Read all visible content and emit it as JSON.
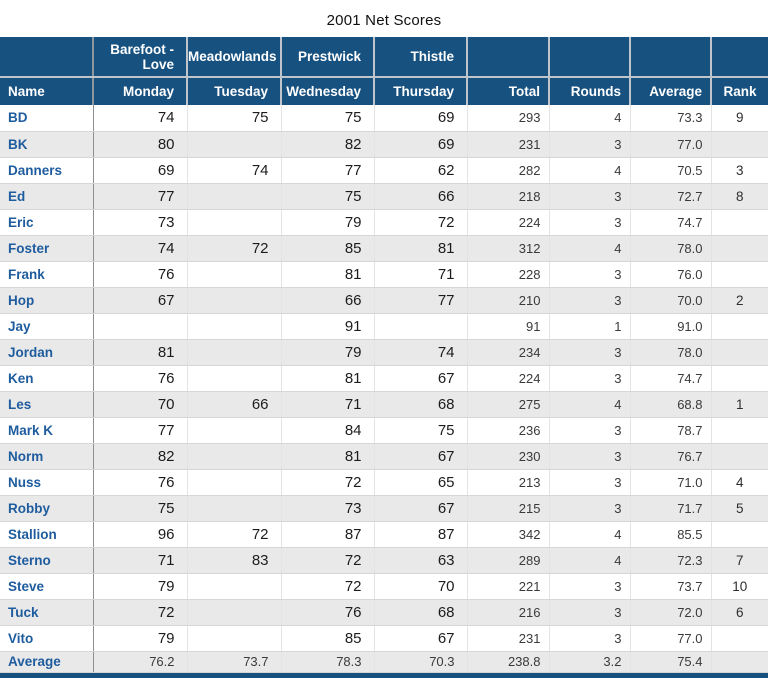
{
  "title": "2001 Net Scores",
  "colors": {
    "header_bg": "#175180",
    "name_text": "#1e5c9e",
    "alt_row_bg": "#e9e9e9"
  },
  "chart_data": {
    "type": "table",
    "title": "2001 Net Scores",
    "course_header": [
      "",
      "Barefoot - Love",
      "Meadowlands",
      "Prestwick",
      "Thistle",
      "",
      "",
      "",
      ""
    ],
    "columns": [
      "Name",
      "Monday",
      "Tuesday",
      "Wednesday",
      "Thursday",
      "Total",
      "Rounds",
      "Average",
      "Rank"
    ],
    "rows": [
      [
        "BD",
        "74",
        "75",
        "75",
        "69",
        "293",
        "4",
        "73.3",
        "9"
      ],
      [
        "BK",
        "80",
        "",
        "82",
        "69",
        "231",
        "3",
        "77.0",
        ""
      ],
      [
        "Danners",
        "69",
        "74",
        "77",
        "62",
        "282",
        "4",
        "70.5",
        "3"
      ],
      [
        "Ed",
        "77",
        "",
        "75",
        "66",
        "218",
        "3",
        "72.7",
        "8"
      ],
      [
        "Eric",
        "73",
        "",
        "79",
        "72",
        "224",
        "3",
        "74.7",
        ""
      ],
      [
        "Foster",
        "74",
        "72",
        "85",
        "81",
        "312",
        "4",
        "78.0",
        ""
      ],
      [
        "Frank",
        "76",
        "",
        "81",
        "71",
        "228",
        "3",
        "76.0",
        ""
      ],
      [
        "Hop",
        "67",
        "",
        "66",
        "77",
        "210",
        "3",
        "70.0",
        "2"
      ],
      [
        "Jay",
        "",
        "",
        "91",
        "",
        "91",
        "1",
        "91.0",
        ""
      ],
      [
        "Jordan",
        "81",
        "",
        "79",
        "74",
        "234",
        "3",
        "78.0",
        ""
      ],
      [
        "Ken",
        "76",
        "",
        "81",
        "67",
        "224",
        "3",
        "74.7",
        ""
      ],
      [
        "Les",
        "70",
        "66",
        "71",
        "68",
        "275",
        "4",
        "68.8",
        "1"
      ],
      [
        "Mark K",
        "77",
        "",
        "84",
        "75",
        "236",
        "3",
        "78.7",
        ""
      ],
      [
        "Norm",
        "82",
        "",
        "81",
        "67",
        "230",
        "3",
        "76.7",
        ""
      ],
      [
        "Nuss",
        "76",
        "",
        "72",
        "65",
        "213",
        "3",
        "71.0",
        "4"
      ],
      [
        "Robby",
        "75",
        "",
        "73",
        "67",
        "215",
        "3",
        "71.7",
        "5"
      ],
      [
        "Stallion",
        "96",
        "72",
        "87",
        "87",
        "342",
        "4",
        "85.5",
        ""
      ],
      [
        "Sterno",
        "71",
        "83",
        "72",
        "63",
        "289",
        "4",
        "72.3",
        "7"
      ],
      [
        "Steve",
        "79",
        "",
        "72",
        "70",
        "221",
        "3",
        "73.7",
        "10"
      ],
      [
        "Tuck",
        "72",
        "",
        "76",
        "68",
        "216",
        "3",
        "72.0",
        "6"
      ],
      [
        "Vito",
        "79",
        "",
        "85",
        "67",
        "231",
        "3",
        "77.0",
        ""
      ]
    ],
    "footer_row": [
      "Average",
      "76.2",
      "73.7",
      "78.3",
      "70.3",
      "238.8",
      "3.2",
      "75.4",
      ""
    ]
  }
}
